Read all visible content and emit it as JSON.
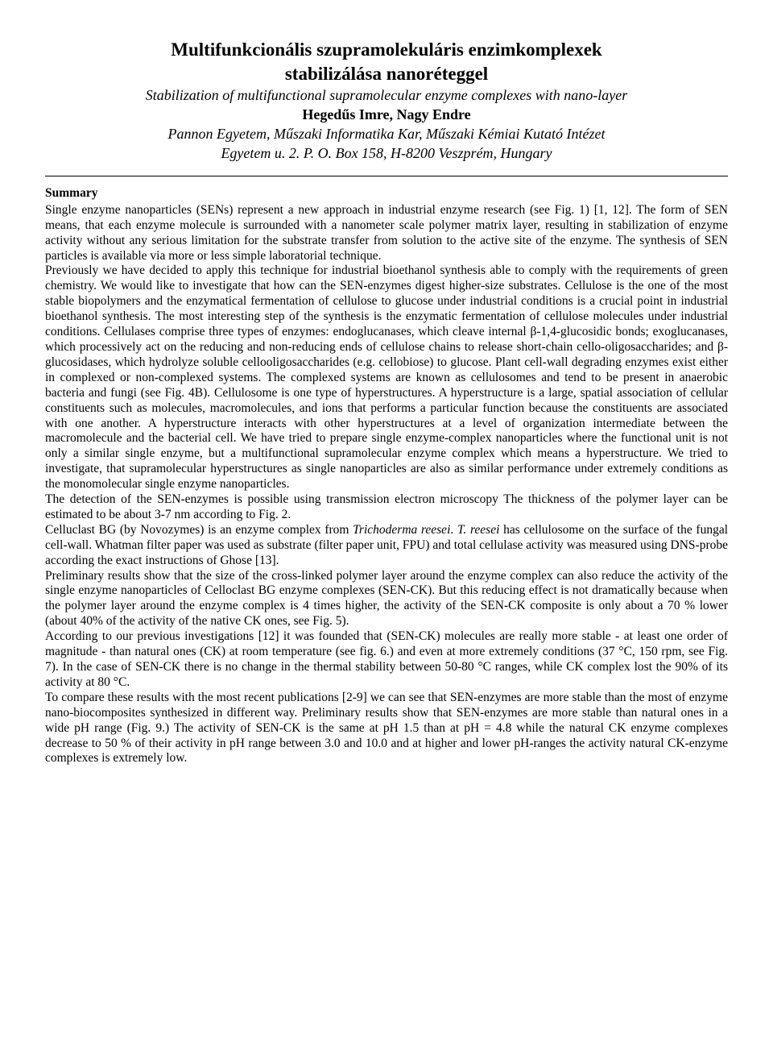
{
  "header": {
    "title_line1": "Multifunkcionális szupramolekuláris enzimkomplexek",
    "title_line2": "stabilizálása nanoréteggel",
    "subtitle": "Stabilization of multifunctional supramolecular enzyme complexes with nano-layer",
    "authors": "Hegedűs Imre, Nagy Endre",
    "affiliation": "Pannon Egyetem, Műszaki Informatika Kar, Műszaki Kémiai Kutató Intézet",
    "address": "Egyetem u. 2. P. O. Box 158, H-8200 Veszprém, Hungary"
  },
  "summary": {
    "heading": "Summary",
    "p1": "Single enzyme nanoparticles (SENs) represent a new approach in industrial enzyme research (see Fig. 1) [1, 12]. The form of SEN means, that each enzyme molecule is surrounded with a nanometer scale polymer matrix layer, resulting in stabilization of enzyme activity without any serious limitation for the substrate transfer from solution to the active site of the enzyme. The synthesis of SEN particles is available via more or less simple laboratorial technique.",
    "p2a": "Previously we have decided to apply this technique for industrial bioethanol synthesis able to comply with the requirements of green chemistry. We would like to investigate that how can the SEN-enzymes digest higher-size substrates. Cellulose is the one of the most stable biopolymers and the enzymatical fermentation of cellulose to glucose under industrial conditions is a crucial point in industrial bioethanol synthesis. ",
    "p2b": "The most interesting step of the synthesis is the enzymatic fermentation of cellulose molecules under industrial conditions. Cellulases comprise three types of enzymes: endoglucanases, which cleave internal β-1,4-glucosidic bonds; exoglucanases, which processively act on the reducing and non-reducing ends of cellulose chains to release short-chain cello-oligosaccharides; and β-glucosidases, which hydrolyze soluble cellooligosaccharides (e.g. cellobiose) to glucose. Plant cell-wall degrading enzymes exist either in complexed or non-complexed systems. The complexed systems are known as cellulosomes and tend to be present in anaerobic bacteria and fungi (see Fig. 4B). Cellulosome is one type of hyperstructures. A hyperstructure is a large, spatial association of cellular constituents such as molecules, macromolecules, and ions that performs a particular function because the constituents are associated with one another. A hyperstructure interacts with other hyperstructures at a level of organization intermediate between the macromolecule and the bacterial cell. We have tried to prepare single enzyme-complex nanoparticles where the functional unit is not only a similar single enzyme, but a multifunctional supramolecular enzyme complex which means a hyperstructure. We tried to investigate, that supramolecular hyperstructures as single nanoparticles are also as similar performance under extremely conditions as the monomolecular single enzyme nanoparticles.",
    "p3": "The detection of the SEN-enzymes is possible using transmission electron microscopy The thickness of the polymer layer can be estimated to be about 3-7 nm according to Fig. 2.",
    "p4a": "Celluclast BG (by Novozymes) is an enzyme complex from ",
    "p4i1": "Trichoderma reesei",
    "p4b": ". ",
    "p4i2": "T. reesei",
    "p4c": " has cellulosome on the surface of the fungal cell-wall. Whatman filter paper was used as substrate (filter paper unit, FPU) and total cellulase activity was measured using DNS-probe according the exact instructions of Ghose [13].",
    "p5": "Preliminary results show that the size of the cross-linked polymer layer around the enzyme complex can also reduce the activity of the single enzyme nanoparticles of Celloclast BG enzyme complexes (SEN-CK). But this reducing effect is not dramatically because when the polymer layer around the enzyme complex is 4 times higher, the activity of the SEN-CK composite is only about a 70 % lower (about 40% of the activity of the native CK ones, see Fig. 5).",
    "p6": "According to our previous investigations [12] it was founded that (SEN-CK) molecules are really more stable - at least one order of magnitude - than natural ones (CK) at room temperature (see fig. 6.) and even at more extremely conditions (37 °C, 150 rpm, see Fig. 7). In the case of SEN-CK there is no change in the thermal stability between 50-80 °C ranges, while CK complex lost the 90% of its activity at 80 °C.",
    "p7": "To compare these results with the most recent publications [2-9] we can see that SEN-enzymes are more stable than the most of enzyme nano-biocomposites synthesized in different way. Preliminary results show that SEN-enzymes are more stable than natural ones in a wide pH range (Fig. 9.) The activity of SEN-CK is the same at pH 1.5 than at pH = 4.8 while the natural CK enzyme complexes decrease to 50 % of their activity in pH range between 3.0 and 10.0 and at higher and lower pH-ranges the activity natural CK-enzyme complexes is extremely low."
  },
  "style": {
    "background_color": "#ffffff",
    "text_color": "#000000",
    "font_family": "Times New Roman",
    "title_fontsize": 23,
    "subtitle_fontsize": 18,
    "body_fontsize": 15.5,
    "rule_color": "#000000"
  }
}
